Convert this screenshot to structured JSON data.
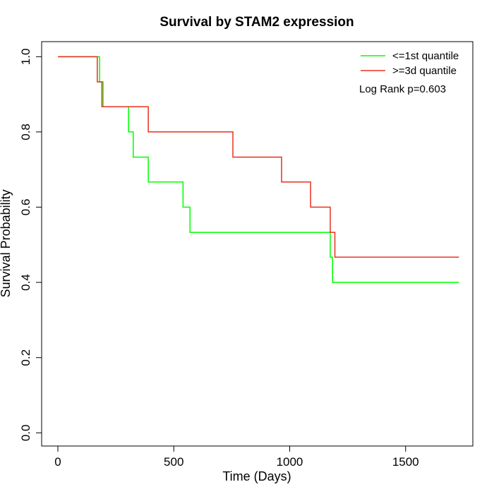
{
  "chart_data": {
    "type": "line",
    "title": "Survival by STAM2 expression",
    "xlabel": "Time (Days)",
    "ylabel": "Survival Probability",
    "xlim": [
      -70,
      1790
    ],
    "ylim": [
      -0.035,
      1.04
    ],
    "xticks": [
      0,
      500,
      1000,
      1500
    ],
    "yticks": [
      0.0,
      0.2,
      0.4,
      0.6,
      0.8,
      1.0
    ],
    "xtick_labels": [
      "0",
      "500",
      "1000",
      "1500"
    ],
    "ytick_labels": [
      "0.0",
      "0.2",
      "0.4",
      "0.6",
      "0.8",
      "1.0"
    ],
    "legend_position": "top-right",
    "annotation": "Log Rank p=0.603",
    "step": true,
    "series": [
      {
        "name": "<=1st quantile",
        "color": "#00ff00",
        "x": [
          0,
          180,
          195,
          305,
          325,
          390,
          540,
          570,
          1175,
          1185,
          1730
        ],
        "y": [
          1.0,
          0.933,
          0.867,
          0.8,
          0.733,
          0.667,
          0.6,
          0.533,
          0.467,
          0.4,
          0.4
        ]
      },
      {
        "name": ">=3d quantile",
        "color": "#e8311f",
        "x": [
          0,
          170,
          190,
          390,
          755,
          965,
          1090,
          1175,
          1195,
          1730
        ],
        "y": [
          1.0,
          0.933,
          0.867,
          0.8,
          0.733,
          0.667,
          0.6,
          0.533,
          0.467,
          0.467
        ]
      }
    ]
  }
}
